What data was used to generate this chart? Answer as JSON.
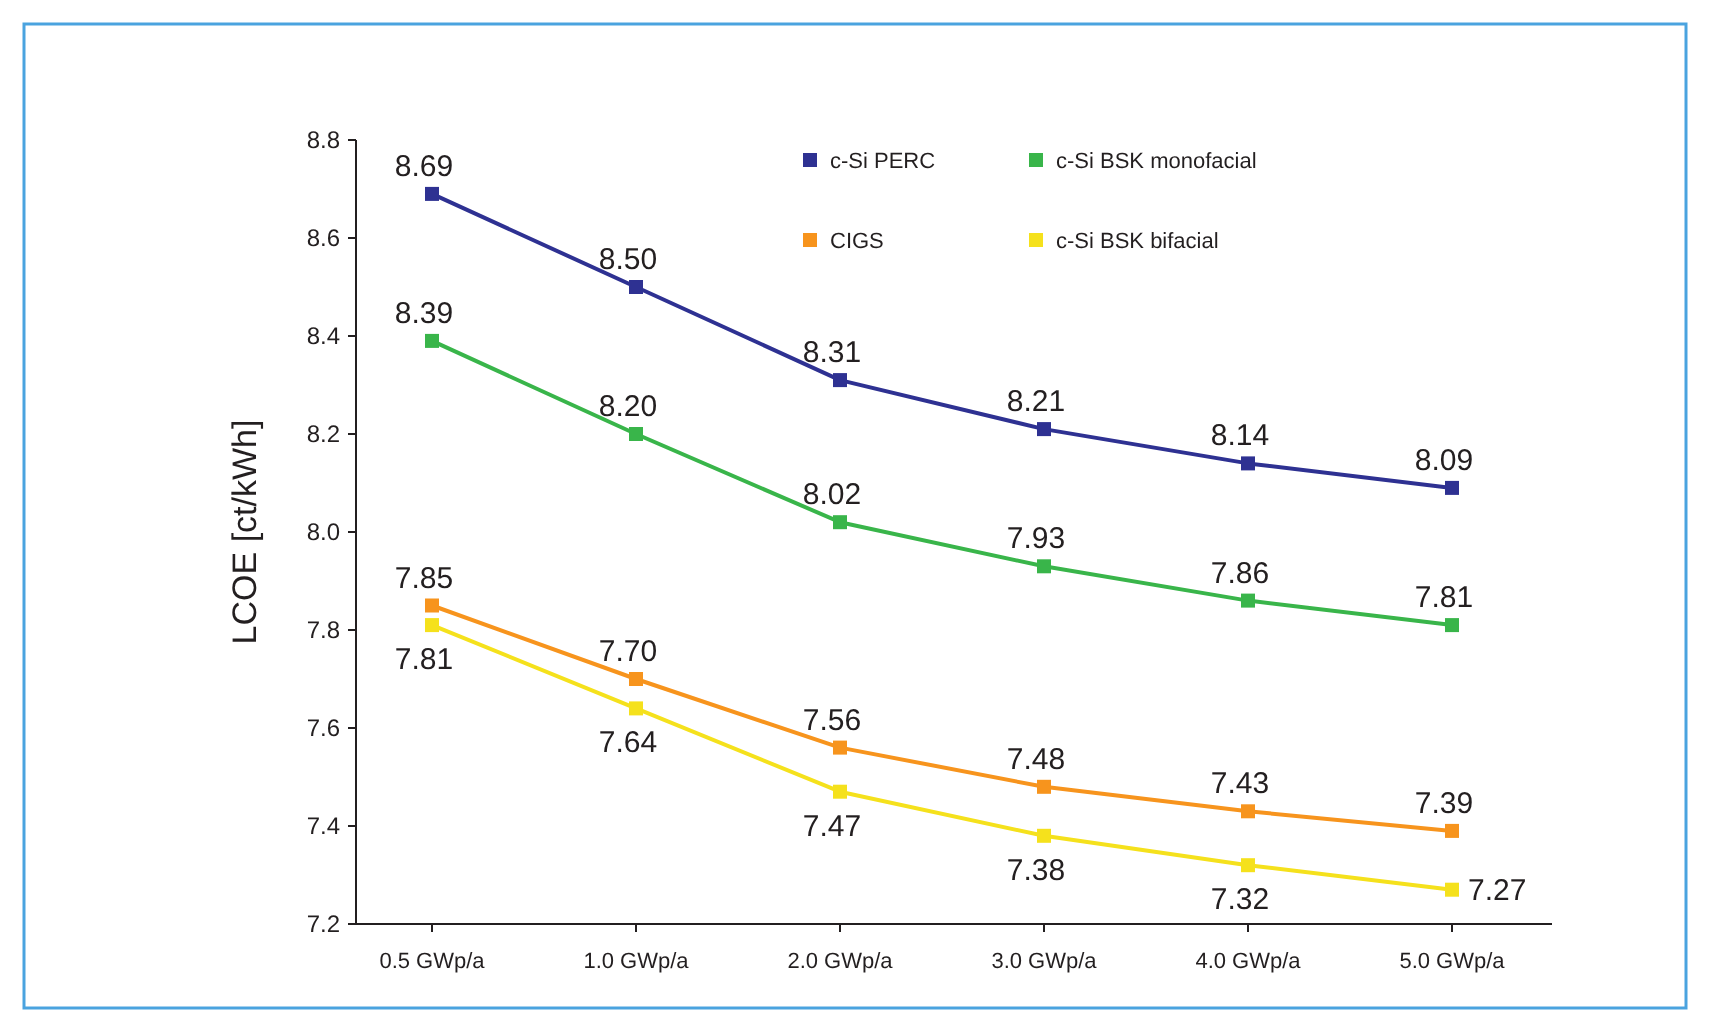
{
  "chart_data": {
    "type": "line",
    "ylabel": "LCOE [ct/kWh]",
    "categories": [
      "0.5 GWp/a",
      "1.0 GWp/a",
      "2.0 GWp/a",
      "3.0 GWp/a",
      "4.0 GWp/a",
      "5.0 GWp/a"
    ],
    "series": [
      {
        "name": "c-Si PERC",
        "color": "#2e3192",
        "values": [
          8.69,
          8.5,
          8.31,
          8.21,
          8.14,
          8.09
        ],
        "value_labels": [
          "8.69",
          "8.50",
          "8.31",
          "8.21",
          "8.14",
          "8.09"
        ]
      },
      {
        "name": "c-Si BSK monofacial",
        "color": "#39b54a",
        "values": [
          8.39,
          8.2,
          8.02,
          7.93,
          7.86,
          7.81
        ],
        "value_labels": [
          "8.39",
          "8.20",
          "8.02",
          "7.93",
          "7.86",
          "7.81"
        ]
      },
      {
        "name": "CIGS",
        "color": "#f7941d",
        "values": [
          7.85,
          7.7,
          7.56,
          7.48,
          7.43,
          7.39
        ],
        "value_labels": [
          "7.85",
          "7.70",
          "7.56",
          "7.48",
          "7.43",
          "7.39"
        ]
      },
      {
        "name": "c-Si BSK bifacial",
        "color": "#f5e11c",
        "values": [
          7.81,
          7.64,
          7.47,
          7.38,
          7.32,
          7.27
        ],
        "value_labels": [
          "7.81",
          "7.64",
          "7.47",
          "7.38",
          "7.32",
          "7.27"
        ]
      }
    ],
    "ylim": [
      7.2,
      8.8
    ],
    "yticks": [
      7.2,
      7.4,
      7.6,
      7.8,
      {
        "value": 8,
        "label": "8.0"
      },
      8.2,
      8.4,
      8.6,
      8.8
    ],
    "marker": "square",
    "line_style": "solid",
    "legend": "top right",
    "grid": false
  }
}
